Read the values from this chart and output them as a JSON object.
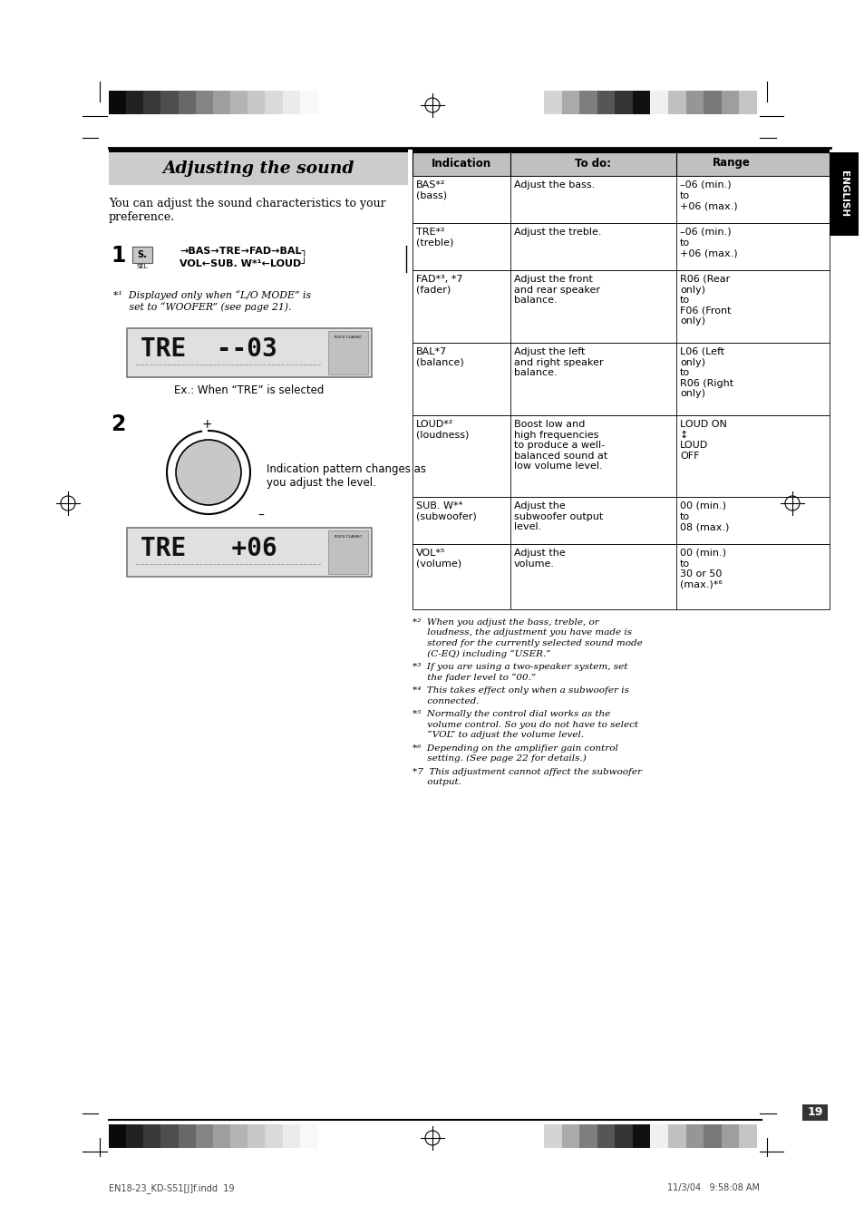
{
  "bg_color": "#ffffff",
  "page_title": "Adjusting the sound",
  "intro_text": "You can adjust the sound characteristics to your\npreference.",
  "footnote1_line1": "*¹  Displayed only when “L/O MODE” is",
  "footnote1_line2": "     set to “WOOFER” (see page 21).",
  "ex_caption": "Ex.: When “TRE” is selected",
  "step2_caption_line1": "Indication pattern changes as",
  "step2_caption_line2": "you adjust the level.",
  "table_headers": [
    "Indication",
    "To do:",
    "Range"
  ],
  "table_rows": [
    [
      "BAS*²\n(bass)",
      "Adjust the bass.",
      "–06 (min.)\nto\n+06 (max.)"
    ],
    [
      "TRE*²\n(treble)",
      "Adjust the treble.",
      "–06 (min.)\nto\n+06 (max.)"
    ],
    [
      "FAD*³, *7\n(fader)",
      "Adjust the front\nand rear speaker\nbalance.",
      "R06 (Rear\nonly)\nto\nF06 (Front\nonly)"
    ],
    [
      "BAL*7\n(balance)",
      "Adjust the left\nand right speaker\nbalance.",
      "L06 (Left\nonly)\nto\nR06 (Right\nonly)"
    ],
    [
      "LOUD*²\n(loudness)",
      "Boost low and\nhigh frequencies\nto produce a well-\nbalanced sound at\nlow volume level.",
      "LOUD ON\n↕\nLOUD\nOFF"
    ],
    [
      "SUB. W*⁴\n(subwoofer)",
      "Adjust the\nsubwoofer output\nlevel.",
      "00 (min.)\nto\n08 (max.)"
    ],
    [
      "VOL*⁵\n(volume)",
      "Adjust the\nvolume.",
      "00 (min.)\nto\n30 or 50\n(max.)*⁶"
    ]
  ],
  "table_row_heights": [
    52,
    52,
    80,
    80,
    90,
    52,
    72
  ],
  "footnotes": [
    "*²  When you adjust the bass, treble, or\n     loudness, the adjustment you have made is\n     stored for the currently selected sound mode\n     (C-EQ) including “USER.”",
    "*³  If you are using a two-speaker system, set\n     the fader level to “00.”",
    "*⁴  This takes effect only when a subwoofer is\n     connected.",
    "*⁵  Normally the control dial works as the\n     volume control. So you do not have to select\n     “VOL” to adjust the volume level.",
    "*⁶  Depending on the amplifier gain control\n     setting. (See page 22 for details.)",
    "*7  This adjustment cannot affect the subwoofer\n     output."
  ],
  "page_number": "19",
  "english_label": "ENGLISH",
  "bottom_left_text": "EN18-23_KD-S51[J]f.indd  19",
  "bottom_right_text": "11/3/04   9:58:08 AM",
  "grad_left_colors": [
    "#0a0a0a",
    "#222222",
    "#383838",
    "#4e4e4e",
    "#686868",
    "#848484",
    "#9e9e9e",
    "#b4b4b4",
    "#c8c8c8",
    "#dadada",
    "#ebebeb",
    "#f8f8f8"
  ],
  "grad_right_colors": [
    "#d4d4d4",
    "#aaaaaa",
    "#7e7e7e",
    "#565656",
    "#343434",
    "#101010",
    "#f0f0f0",
    "#c0c0c0",
    "#969696",
    "#787878",
    "#9e9e9e",
    "#c4c4c4"
  ]
}
